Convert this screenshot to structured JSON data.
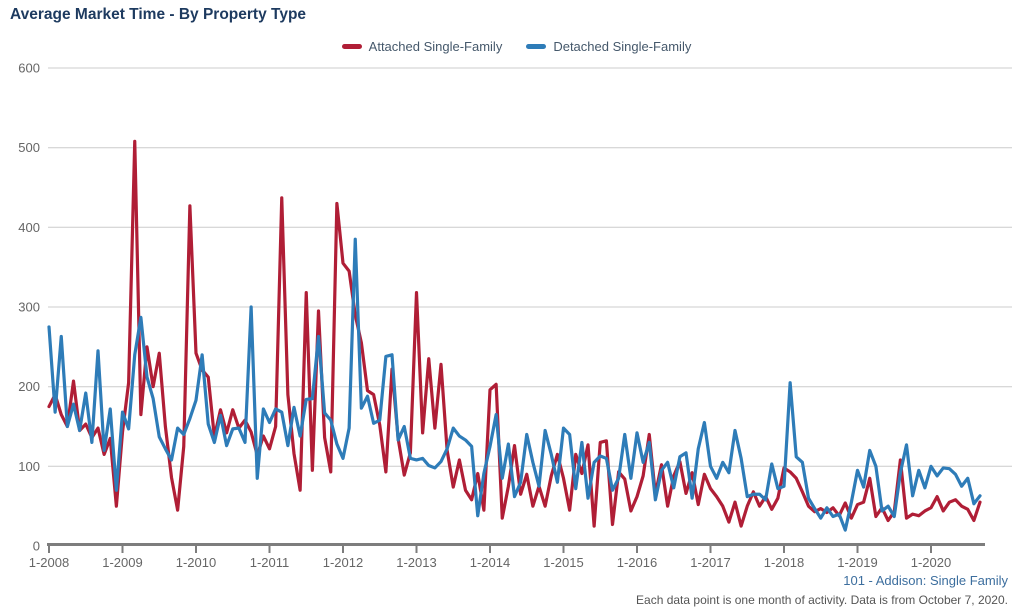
{
  "header": {
    "title": "Average Market Time - By Property Type"
  },
  "footer": {
    "link": "101 - Addison: Single Family",
    "note": "Each data point is one month of activity. Data is from October 7, 2020."
  },
  "chart_data": {
    "type": "line",
    "title": "Average Market Time - By Property Type",
    "xlabel": "",
    "ylabel": "",
    "ylim": [
      0,
      600
    ],
    "y_ticks": [
      0,
      100,
      200,
      300,
      400,
      500,
      600
    ],
    "grid": "horizontal",
    "legend_position": "top-center",
    "x_unit": "month",
    "x_start": "1-2008",
    "x_end": "9-2020",
    "x_tick_labels": [
      "1-2008",
      "1-2009",
      "1-2010",
      "1-2011",
      "1-2012",
      "1-2013",
      "1-2014",
      "1-2015",
      "1-2016",
      "1-2017",
      "1-2018",
      "1-2019",
      "1-2020"
    ],
    "axis_color": "#7d7d7d",
    "gridline_color": "#cccccc",
    "tick_label_color": "#666666",
    "series": [
      {
        "name": "Attached Single-Family",
        "color": "#b01e36",
        "values": [
          175,
          190,
          165,
          150,
          207,
          145,
          153,
          136,
          148,
          115,
          135,
          50,
          143,
          205,
          508,
          165,
          250,
          200,
          242,
          150,
          86,
          45,
          125,
          427,
          242,
          221,
          212,
          137,
          171,
          142,
          171,
          148,
          158,
          143,
          114,
          138,
          122,
          150,
          437,
          190,
          116,
          70,
          318,
          95,
          295,
          136,
          93,
          430,
          355,
          345,
          290,
          255,
          195,
          190,
          152,
          93,
          222,
          135,
          89,
          117,
          318,
          142,
          235,
          148,
          228,
          120,
          74,
          108,
          70,
          58,
          91,
          45,
          196,
          203,
          35,
          75,
          126,
          65,
          90,
          50,
          75,
          50,
          88,
          115,
          85,
          45,
          115,
          91,
          127,
          25,
          130,
          132,
          27,
          93,
          84,
          44,
          62,
          88,
          140,
          65,
          102,
          50,
          88,
          106,
          66,
          92,
          52,
          90,
          72,
          62,
          50,
          30,
          55,
          25,
          50,
          68,
          50,
          62,
          46,
          60,
          98,
          93,
          85,
          68,
          50,
          43,
          47,
          42,
          48,
          38,
          54,
          35,
          52,
          55,
          85,
          37,
          48,
          32,
          43,
          108,
          35,
          40,
          38,
          44,
          48,
          62,
          44,
          55,
          58,
          50,
          46,
          32,
          55
        ]
      },
      {
        "name": "Detached Single-Family",
        "color": "#2e7cb8",
        "values": [
          275,
          168,
          263,
          150,
          178,
          145,
          192,
          130,
          245,
          120,
          172,
          70,
          168,
          147,
          240,
          287,
          212,
          185,
          137,
          122,
          108,
          148,
          140,
          160,
          183,
          240,
          153,
          130,
          164,
          126,
          147,
          148,
          130,
          300,
          85,
          172,
          155,
          172,
          168,
          126,
          174,
          138,
          184,
          185,
          263,
          167,
          158,
          128,
          110,
          148,
          385,
          173,
          188,
          154,
          158,
          238,
          240,
          133,
          150,
          110,
          108,
          110,
          101,
          98,
          106,
          122,
          148,
          138,
          133,
          125,
          38,
          91,
          125,
          165,
          85,
          128,
          62,
          80,
          140,
          105,
          75,
          145,
          115,
          80,
          148,
          140,
          72,
          130,
          60,
          105,
          113,
          110,
          70,
          85,
          140,
          85,
          142,
          105,
          130,
          58,
          95,
          105,
          73,
          112,
          117,
          60,
          122,
          155,
          100,
          85,
          105,
          92,
          145,
          110,
          62,
          65,
          65,
          58,
          103,
          72,
          75,
          205,
          112,
          105,
          60,
          47,
          35,
          48,
          37,
          40,
          20,
          55,
          95,
          74,
          120,
          100,
          44,
          50,
          37,
          92,
          127,
          63,
          95,
          73,
          100,
          88,
          98,
          97,
          90,
          75,
          85,
          53,
          63
        ]
      }
    ]
  }
}
